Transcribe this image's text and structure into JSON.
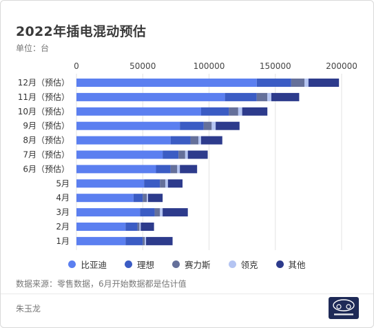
{
  "title": "2022年插电混动预估",
  "unit_label": "单位：台",
  "note": "数据来源：零售数据，6月开始数据都是估计值",
  "author": "朱玉龙",
  "chart_data": {
    "type": "bar",
    "orientation": "horizontal",
    "stacked": true,
    "categories": [
      "12月（预估）",
      "11月（预估）",
      "10月（预估）",
      "9月（预估）",
      "8月（预估）",
      "7月（预估）",
      "6月（预估）",
      "5月",
      "4月",
      "3月",
      "2月",
      "1月"
    ],
    "xlim": [
      0,
      200000
    ],
    "xticks": [
      0,
      50000,
      100000,
      150000,
      200000
    ],
    "xtick_labels": [
      "0",
      "50000",
      "100000",
      "150000",
      "200000"
    ],
    "grid": true,
    "legend_position": "bottom",
    "series": [
      {
        "name": "比亚迪",
        "color": "#5b7ff0",
        "values": [
          136000,
          112000,
          94000,
          78000,
          71000,
          65000,
          60000,
          51000,
          43000,
          48000,
          37000,
          37000
        ]
      },
      {
        "name": "理想",
        "color": "#3b5cc4",
        "values": [
          26000,
          24000,
          21000,
          18000,
          15000,
          12000,
          11000,
          12000,
          7000,
          11000,
          9000,
          13000
        ]
      },
      {
        "name": "赛力斯",
        "color": "#65709a",
        "values": [
          10000,
          8000,
          7000,
          6000,
          6000,
          5000,
          5000,
          4000,
          3000,
          4000,
          1500,
          1500
        ]
      },
      {
        "name": "领克",
        "color": "#b4c4f2",
        "values": [
          3000,
          3000,
          3000,
          3000,
          2000,
          2000,
          2000,
          2000,
          1000,
          2000,
          1000,
          1000
        ]
      },
      {
        "name": "其他",
        "color": "#2d3b8c",
        "values": [
          23000,
          21000,
          19000,
          18000,
          16000,
          15000,
          13000,
          11000,
          11000,
          19000,
          10000,
          20000
        ]
      }
    ]
  }
}
